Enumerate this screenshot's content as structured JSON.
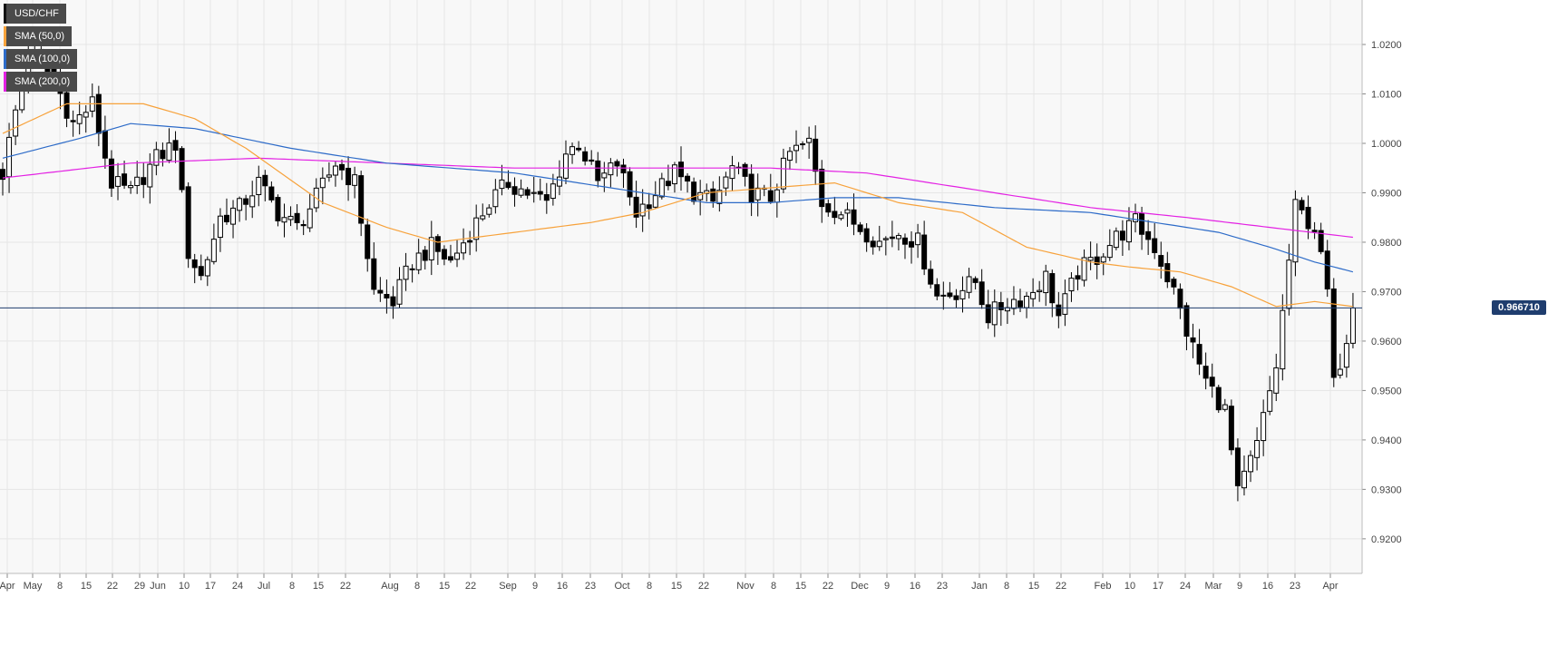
{
  "chart_data": {
    "type": "candlestick",
    "instrument": "USD/CHF",
    "indicators": [
      {
        "label": "SMA (50,0)",
        "color": "#f7a23b"
      },
      {
        "label": "SMA (100,0)",
        "color": "#2d6bc8"
      },
      {
        "label": "SMA (200,0)",
        "color": "#e321e3"
      }
    ],
    "current_price": {
      "label": "0.966710",
      "value": 0.9667
    },
    "ylim": [
      0.913,
      1.029
    ],
    "y_ticks": [
      "0.9200",
      "0.9300",
      "0.9400",
      "0.9500",
      "0.9600",
      "0.9700",
      "0.9800",
      "0.9900",
      "1.0000",
      "1.0100",
      "1.0200"
    ],
    "x_ticks": [
      "Apr",
      "May",
      "8",
      "15",
      "22",
      "29",
      "Jun",
      "10",
      "17",
      "24",
      "Jul",
      "8",
      "15",
      "22",
      "Aug",
      "8",
      "15",
      "22",
      "Sep",
      "9",
      "16",
      "23",
      "Oct",
      "8",
      "15",
      "22",
      "Nov",
      "8",
      "15",
      "22",
      "Dec",
      "9",
      "16",
      "23",
      "Jan",
      "8",
      "15",
      "22",
      "Feb",
      "10",
      "17",
      "24",
      "Mar",
      "9",
      "16",
      "23",
      "Apr"
    ],
    "grid": true,
    "price_anchors": [
      [
        0,
        0.994
      ],
      [
        4,
        1.019
      ],
      [
        8,
        1.013
      ],
      [
        11,
        1.004
      ],
      [
        14,
        1.008
      ],
      [
        17,
        0.992
      ],
      [
        20,
        0.99
      ],
      [
        24,
        0.997
      ],
      [
        27,
        1.0
      ],
      [
        29,
        0.978
      ],
      [
        31,
        0.973
      ],
      [
        34,
        0.985
      ],
      [
        37,
        0.987
      ],
      [
        40,
        0.992
      ],
      [
        43,
        0.986
      ],
      [
        46,
        0.983
      ],
      [
        49,
        0.989
      ],
      [
        52,
        0.996
      ],
      [
        55,
        0.992
      ],
      [
        58,
        0.97
      ],
      [
        61,
        0.968
      ],
      [
        64,
        0.976
      ],
      [
        67,
        0.979
      ],
      [
        70,
        0.976
      ],
      [
        73,
        0.982
      ],
      [
        76,
        0.988
      ],
      [
        79,
        0.992
      ],
      [
        82,
        0.99
      ],
      [
        85,
        0.988
      ],
      [
        88,
        0.998
      ],
      [
        90,
        1.0
      ],
      [
        93,
        0.992
      ],
      [
        96,
        0.996
      ],
      [
        99,
        0.986
      ],
      [
        102,
        0.99
      ],
      [
        105,
        0.994
      ],
      [
        108,
        0.99
      ],
      [
        111,
        0.988
      ],
      [
        114,
        0.995
      ],
      [
        117,
        0.99
      ],
      [
        120,
        0.989
      ],
      [
        123,
        0.998
      ],
      [
        126,
        1.0
      ],
      [
        128,
        0.988
      ],
      [
        131,
        0.986
      ],
      [
        134,
        0.983
      ],
      [
        137,
        0.98
      ],
      [
        140,
        0.982
      ],
      [
        143,
        0.98
      ],
      [
        146,
        0.969
      ],
      [
        149,
        0.97
      ],
      [
        152,
        0.972
      ],
      [
        154,
        0.965
      ],
      [
        157,
        0.968
      ],
      [
        160,
        0.969
      ],
      [
        163,
        0.973
      ],
      [
        165,
        0.965
      ],
      [
        168,
        0.974
      ],
      [
        171,
        0.977
      ],
      [
        174,
        0.981
      ],
      [
        177,
        0.984
      ],
      [
        180,
        0.979
      ],
      [
        183,
        0.97
      ],
      [
        185,
        0.962
      ],
      [
        188,
        0.952
      ],
      [
        191,
        0.946
      ],
      [
        193,
        0.929
      ],
      [
        196,
        0.939
      ],
      [
        199,
        0.955
      ],
      [
        202,
        0.987
      ],
      [
        205,
        0.983
      ],
      [
        207,
        0.97
      ],
      [
        208,
        0.951
      ],
      [
        210,
        0.961
      ],
      [
        211,
        0.9667
      ]
    ],
    "sma50_anchors": [
      [
        0,
        1.002
      ],
      [
        10,
        1.008
      ],
      [
        22,
        1.008
      ],
      [
        30,
        1.005
      ],
      [
        38,
        0.999
      ],
      [
        50,
        0.988
      ],
      [
        60,
        0.983
      ],
      [
        68,
        0.98
      ],
      [
        80,
        0.982
      ],
      [
        92,
        0.984
      ],
      [
        100,
        0.986
      ],
      [
        110,
        0.99
      ],
      [
        120,
        0.991
      ],
      [
        130,
        0.992
      ],
      [
        140,
        0.988
      ],
      [
        150,
        0.986
      ],
      [
        160,
        0.979
      ],
      [
        170,
        0.976
      ],
      [
        176,
        0.975
      ],
      [
        184,
        0.974
      ],
      [
        192,
        0.971
      ],
      [
        199,
        0.967
      ],
      [
        205,
        0.968
      ],
      [
        211,
        0.967
      ]
    ],
    "sma100_anchors": [
      [
        0,
        0.997
      ],
      [
        12,
        1.001
      ],
      [
        20,
        1.004
      ],
      [
        30,
        1.003
      ],
      [
        45,
        0.999
      ],
      [
        60,
        0.996
      ],
      [
        80,
        0.994
      ],
      [
        95,
        0.991
      ],
      [
        110,
        0.988
      ],
      [
        120,
        0.988
      ],
      [
        130,
        0.989
      ],
      [
        140,
        0.989
      ],
      [
        155,
        0.987
      ],
      [
        170,
        0.986
      ],
      [
        180,
        0.984
      ],
      [
        190,
        0.982
      ],
      [
        198,
        0.979
      ],
      [
        205,
        0.976
      ],
      [
        211,
        0.974
      ]
    ],
    "sma200_anchors": [
      [
        0,
        0.993
      ],
      [
        20,
        0.996
      ],
      [
        40,
        0.997
      ],
      [
        60,
        0.996
      ],
      [
        80,
        0.995
      ],
      [
        100,
        0.995
      ],
      [
        120,
        0.995
      ],
      [
        135,
        0.994
      ],
      [
        150,
        0.991
      ],
      [
        170,
        0.987
      ],
      [
        185,
        0.985
      ],
      [
        198,
        0.983
      ],
      [
        211,
        0.981
      ]
    ]
  }
}
